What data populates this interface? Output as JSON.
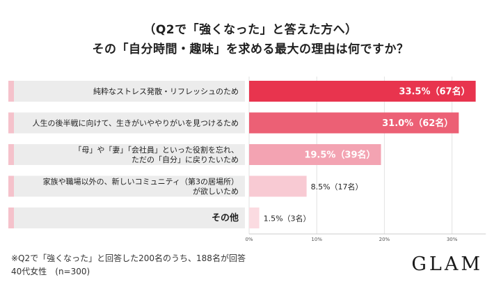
{
  "title_line1": "（Q2で「強くなった」と答えた方へ）",
  "title_line2": "その「自分時間・趣味」を求める最大の理由は何ですか？",
  "chart_data": {
    "type": "bar",
    "orientation": "horizontal",
    "categories": [
      [
        "純粋なストレス発散・リフレッシュのため"
      ],
      [
        "人生の後半戦に向けて、生きがいややりがいを見つけるため"
      ],
      [
        "「母」や「妻」「会社員」といった役割を忘れ、",
        "ただの「自分」に戻りたいため"
      ],
      [
        "家族や職場以外の、新しいコミュニティ（第3の居場所）",
        "が欲しいため"
      ],
      [
        "その他"
      ]
    ],
    "values": [
      33.5,
      31.0,
      19.5,
      8.5,
      1.5
    ],
    "value_labels": [
      "33.5%（67名）",
      "31.0%（62名）",
      "19.5%（39名）",
      "8.5%（17名）",
      "1.5%（3名）"
    ],
    "bar_colors": [
      "#e8344e",
      "#ec6075",
      "#f3a3b2",
      "#f8cad3",
      "#fbdbe1"
    ],
    "label_inside": [
      true,
      true,
      true,
      false,
      false
    ],
    "xlim": [
      0,
      35
    ],
    "xticks": [
      0,
      10,
      20,
      30
    ],
    "xtick_labels": [
      "0%",
      "10%",
      "20%",
      "30%"
    ],
    "grid": true
  },
  "footnote_line1": "※Q2で「強くなった」と回答した200名のうち、188名が回答",
  "footnote_line2": "40代女性　(n=300)",
  "logo": "GLAM"
}
